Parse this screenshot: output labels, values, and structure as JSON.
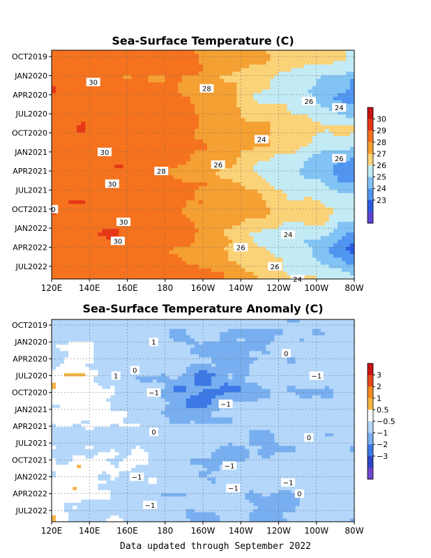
{
  "chart_data": [
    {
      "type": "heatmap",
      "title": "Sea-Surface Temperature (C)",
      "x_ticks": [
        "120E",
        "140E",
        "160E",
        "180",
        "160W",
        "140W",
        "120W",
        "100W",
        "80W"
      ],
      "y_ticks": [
        "OCT2019",
        "JAN2020",
        "APR2020",
        "JUL2020",
        "OCT2020",
        "JAN2021",
        "APR2021",
        "JUL2021",
        "OCT2021",
        "JAN2022",
        "APR2022",
        "JUL2022"
      ],
      "colorbar_labels": [
        "30",
        "29",
        "28",
        "27",
        "26",
        "25",
        "24",
        "23"
      ],
      "colorbar_colors": [
        "#c81414",
        "#e63719",
        "#f5731e",
        "#f5a032",
        "#fad278",
        "#c3ebf5",
        "#82c3f5",
        "#5096f0",
        "#2d5ae1",
        "#5a46d2"
      ],
      "contour_labels": [
        {
          "text": "26",
          "lon": -104,
          "month": 8
        },
        {
          "text": "30",
          "lon": 142,
          "month": 5
        },
        {
          "text": "28",
          "lon": -158,
          "month": 6
        },
        {
          "text": "24",
          "lon": -88,
          "month": 9
        },
        {
          "text": "24",
          "lon": -129,
          "month": 14
        },
        {
          "text": "30",
          "lon": 148,
          "month": 16
        },
        {
          "text": "26",
          "lon": -88,
          "month": 17
        },
        {
          "text": "26",
          "lon": -152,
          "month": 18
        },
        {
          "text": "28",
          "lon": 178,
          "month": 19
        },
        {
          "text": "30",
          "lon": 152,
          "month": 21
        },
        {
          "text": "0",
          "lon": 121,
          "month": 25
        },
        {
          "text": "30",
          "lon": 158,
          "month": 27
        },
        {
          "text": "24",
          "lon": -115,
          "month": 29
        },
        {
          "text": "30",
          "lon": 155,
          "month": 30
        },
        {
          "text": "26",
          "lon": -140,
          "month": 31
        },
        {
          "text": "26",
          "lon": -122,
          "month": 34
        },
        {
          "text": "24",
          "lon": -110,
          "month": 36
        }
      ]
    },
    {
      "type": "heatmap",
      "title": "Sea-Surface Temperature Anomaly (C)",
      "x_ticks": [
        "120E",
        "140E",
        "160E",
        "180",
        "160W",
        "140W",
        "120W",
        "100W",
        "80W"
      ],
      "y_ticks": [
        "OCT2019",
        "JAN2020",
        "APR2020",
        "JUL2020",
        "OCT2020",
        "JAN2021",
        "APR2021",
        "JUL2021",
        "OCT2021",
        "JAN2022",
        "APR2022",
        "JUL2022"
      ],
      "colorbar_labels": [
        "3",
        "2",
        "1",
        "0.5",
        "−0.5",
        "−1",
        "−2",
        "−3"
      ],
      "colorbar_colors": [
        "#c81414",
        "#e6461e",
        "#f08c1e",
        "#f5b446",
        "#ffffff",
        "#b4d7fa",
        "#78aff0",
        "#3c78e6",
        "#2d46c8",
        "#6e46c8"
      ],
      "contour_labels": [
        {
          "text": "1",
          "lon": 174,
          "month": 4
        },
        {
          "text": "0",
          "lon": -116,
          "month": 6
        },
        {
          "text": "0",
          "lon": 164,
          "month": 9
        },
        {
          "text": "1",
          "lon": 154,
          "month": 10
        },
        {
          "text": "−1",
          "lon": -100,
          "month": 10
        },
        {
          "text": "−1",
          "lon": 174,
          "month": 13
        },
        {
          "text": "−1",
          "lon": -148,
          "month": 15
        },
        {
          "text": "0",
          "lon": 174,
          "month": 20
        },
        {
          "text": "0",
          "lon": -104,
          "month": 21
        },
        {
          "text": "−1",
          "lon": -146,
          "month": 26
        },
        {
          "text": "−1",
          "lon": 165,
          "month": 28
        },
        {
          "text": "−1",
          "lon": -115,
          "month": 29
        },
        {
          "text": "−1",
          "lon": -144,
          "month": 30
        },
        {
          "text": "0",
          "lon": -109,
          "month": 31
        },
        {
          "text": "−1",
          "lon": 172,
          "month": 33
        }
      ]
    }
  ],
  "footer": "Data updated through September 2022"
}
